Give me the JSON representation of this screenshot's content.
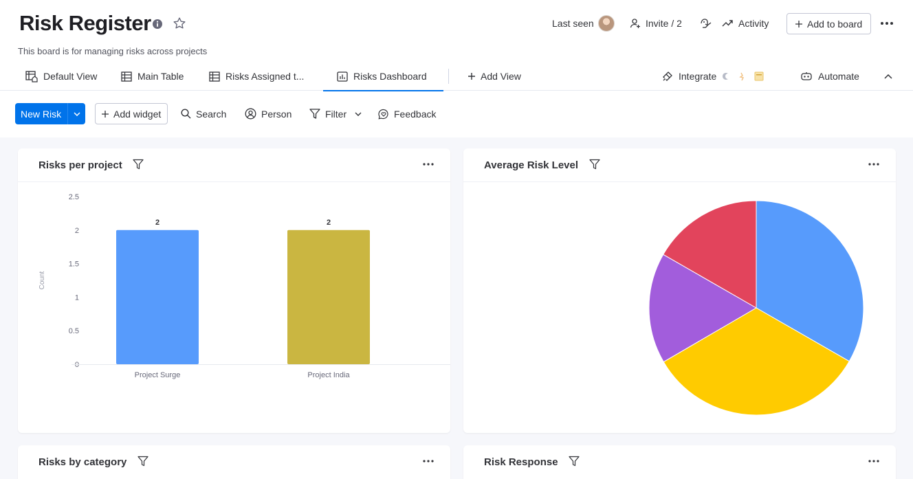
{
  "board": {
    "title": "Risk Register",
    "description": "This board is for managing risks across projects"
  },
  "top_actions": {
    "last_seen": "Last seen",
    "invite": "Invite / 2",
    "activity": "Activity",
    "add_to_board": "Add to board"
  },
  "tabs": {
    "default_view": "Default View",
    "main_table": "Main Table",
    "risks_assigned": "Risks Assigned t...",
    "risks_dashboard": "Risks Dashboard",
    "add_view": "Add View",
    "integrate": "Integrate",
    "automate": "Automate"
  },
  "toolbar": {
    "new_risk": "New Risk",
    "add_widget": "Add widget",
    "search": "Search",
    "person": "Person",
    "filter": "Filter",
    "feedback": "Feedback"
  },
  "widgets": {
    "risks_per_project": "Risks per project",
    "average_risk_level": "Average Risk Level",
    "risks_by_category": "Risks by category",
    "risk_response": "Risk Response"
  },
  "colors": {
    "accent": "#0073ea"
  },
  "chart_data": [
    {
      "type": "bar",
      "title": "Risks per project",
      "categories": [
        "Project Surge",
        "Project India"
      ],
      "values": [
        2,
        2
      ],
      "data_labels": [
        "2",
        "2"
      ],
      "colors": [
        "#579bfc",
        "#cab641"
      ],
      "ylabel": "Count",
      "ylim": [
        0,
        2.5
      ],
      "yticks": [
        "0",
        "0.5",
        "1",
        "1.5",
        "2",
        "2.5"
      ],
      "grid": false
    },
    {
      "type": "pie",
      "title": "Average Risk Level",
      "values": [
        33.3,
        33.3,
        16.7,
        16.7
      ],
      "colors": [
        "#579bfc",
        "#ffcb00",
        "#a25ddc",
        "#e2445c"
      ]
    }
  ]
}
